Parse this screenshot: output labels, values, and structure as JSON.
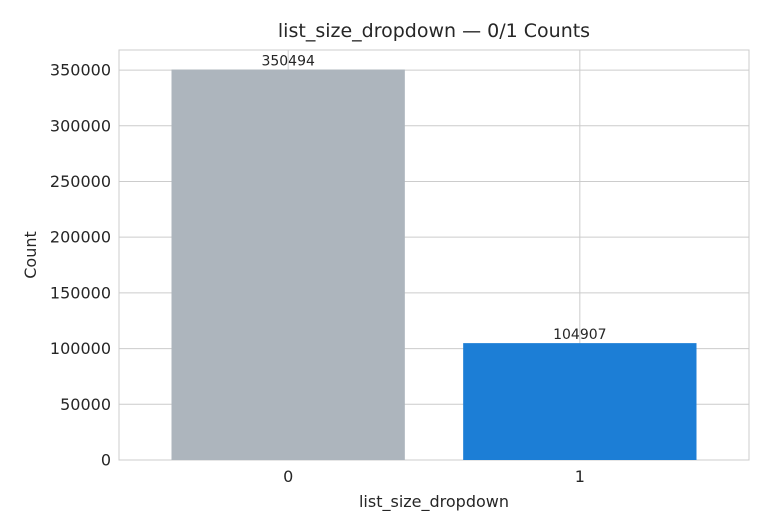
{
  "chart_data": {
    "type": "bar",
    "title": "list_size_dropdown — 0/1 Counts",
    "xlabel": "list_size_dropdown",
    "ylabel": "Count",
    "categories": [
      "0",
      "1"
    ],
    "values": [
      350494,
      104907
    ],
    "data_labels": [
      "350494",
      "104907"
    ],
    "bar_colors": [
      "#adb5bd",
      "#1c7ed6"
    ],
    "ylim": [
      0,
      368018
    ],
    "yticks": [
      0,
      50000,
      100000,
      150000,
      200000,
      250000,
      300000,
      350000
    ],
    "ytick_labels": [
      "0",
      "50000",
      "100000",
      "150000",
      "200000",
      "250000",
      "300000",
      "350000"
    ],
    "grid": true,
    "legend": false
  }
}
